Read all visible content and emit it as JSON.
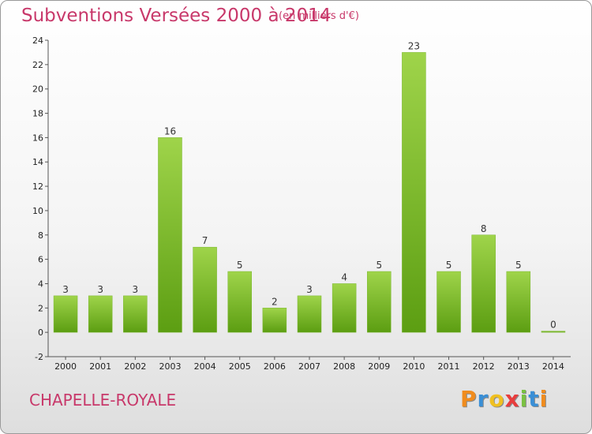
{
  "header": {
    "title": "Subventions Versées 2000 à 2014",
    "subtitle": "(en milliers d'€)"
  },
  "footer": {
    "commune": "CHAPELLE-ROYALE",
    "logo_letters": [
      "P",
      "r",
      "o",
      "x",
      "i",
      "t",
      "i"
    ],
    "logo_colors": [
      "#f08c1e",
      "#3a8fd6",
      "#f0c020",
      "#e83d3d",
      "#7ac142",
      "#3a8fd6",
      "#f08c1e"
    ]
  },
  "chart_data": {
    "type": "bar",
    "title": "Subventions Versées 2000 à 2014",
    "subtitle": "(en milliers d'€)",
    "xlabel": "",
    "ylabel": "",
    "categories": [
      "2000",
      "2001",
      "2002",
      "2003",
      "2004",
      "2005",
      "2006",
      "2007",
      "2008",
      "2009",
      "2010",
      "2011",
      "2012",
      "2013",
      "2014"
    ],
    "values": [
      3,
      3,
      3,
      16,
      7,
      5,
      2,
      3,
      4,
      5,
      23,
      5,
      8,
      5,
      0
    ],
    "ylim": [
      -2,
      24
    ],
    "yticks": [
      -2,
      0,
      2,
      4,
      6,
      8,
      10,
      12,
      14,
      16,
      18,
      20,
      22,
      24
    ],
    "grid": false,
    "bar_color_top": "#9fd44a",
    "bar_color_bottom": "#5c9e12"
  }
}
